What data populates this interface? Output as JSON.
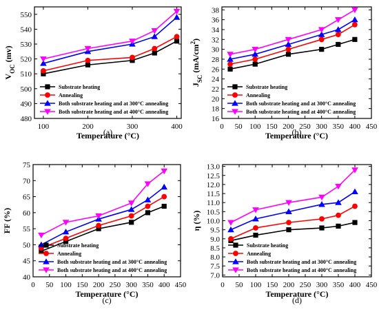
{
  "figure": {
    "captions": [
      "(a)",
      "(b)",
      "(c)",
      "(d)"
    ]
  },
  "legend": [
    {
      "label": "Substrate heating",
      "color": "#000000",
      "marker": "square"
    },
    {
      "label": "Annealing",
      "color": "#ff0000",
      "marker": "circle"
    },
    {
      "label": "Both substrate heating and at 300°C annealing",
      "color": "#0000ff",
      "marker": "triangle-up"
    },
    {
      "label": "Both substrate heating and at 400°C annealing",
      "color": "#ff00ff",
      "marker": "triangle-down"
    }
  ],
  "chart_data": [
    {
      "type": "line",
      "caption": "(a)",
      "xlabel": "Temperature (°C)",
      "ylabel": "Voc (mv)",
      "ylabel_main": "V",
      "ylabel_sub": "OC",
      "ylabel_unit": " (mv)",
      "xlim": [
        80,
        410
      ],
      "ylim": [
        480,
        555
      ],
      "xticks": [
        100,
        200,
        300,
        400
      ],
      "yticks": [
        480,
        490,
        500,
        510,
        520,
        530,
        540,
        550
      ],
      "legend_position": "bottom-right",
      "x": [
        100,
        200,
        300,
        350,
        400
      ],
      "series": [
        {
          "name": "Substrate heating",
          "values": [
            510,
            516,
            519,
            524,
            532
          ]
        },
        {
          "name": "Annealing",
          "values": [
            512,
            519,
            521,
            527,
            535
          ]
        },
        {
          "name": "Both substrate heating and at 300°C annealing",
          "values": [
            517,
            525,
            530,
            535,
            548
          ]
        },
        {
          "name": "Both substrate heating and at 400°C annealing",
          "values": [
            520,
            527,
            532,
            539,
            552
          ]
        }
      ]
    },
    {
      "type": "line",
      "caption": "(b)",
      "xlabel": "Temperature (°C)",
      "ylabel": "Jsc (mA/cm2)",
      "ylabel_main": "J",
      "ylabel_sub": "SC",
      "ylabel_unit": " (mA/cm",
      "ylabel_sup": "2",
      "ylabel_tail": ")",
      "xlim": [
        0,
        450
      ],
      "ylim": [
        16,
        38.6
      ],
      "xticks": [
        0,
        50,
        100,
        150,
        200,
        250,
        300,
        350,
        400,
        450
      ],
      "yticks": [
        16,
        18,
        20,
        22,
        24,
        26,
        28,
        30,
        32,
        34,
        36,
        38
      ],
      "legend_position": "bottom-right",
      "x": [
        25,
        100,
        200,
        300,
        350,
        400
      ],
      "series": [
        {
          "name": "Substrate heating",
          "values": [
            26,
            27,
            29,
            30,
            31,
            32
          ]
        },
        {
          "name": "Annealing",
          "values": [
            27,
            28,
            30,
            32,
            33,
            35
          ]
        },
        {
          "name": "Both substrate heating and at 300°C annealing",
          "values": [
            28,
            29,
            31,
            33,
            34,
            36
          ]
        },
        {
          "name": "Both substrate heating and at 400°C annealing",
          "values": [
            29,
            30,
            32,
            34,
            36,
            38
          ]
        }
      ]
    },
    {
      "type": "line",
      "caption": "(c)",
      "xlabel": "Temperature (°C)",
      "ylabel": "FF (%)",
      "ylabel_main": "FF (%)",
      "xlim": [
        0,
        450
      ],
      "ylim": [
        40,
        75
      ],
      "xticks": [
        0,
        50,
        100,
        150,
        200,
        250,
        300,
        350,
        400,
        450
      ],
      "yticks": [
        40,
        45,
        50,
        55,
        60,
        65,
        70,
        75
      ],
      "legend_position": "bottom-right",
      "x": [
        25,
        100,
        200,
        300,
        350,
        400
      ],
      "series": [
        {
          "name": "Substrate heating",
          "values": [
            48,
            51,
            55,
            57,
            60,
            62
          ]
        },
        {
          "name": "Annealing",
          "values": [
            49,
            52,
            56,
            59,
            62,
            65
          ]
        },
        {
          "name": "Both substrate heating and at 300°C annealing",
          "values": [
            50,
            54,
            58,
            61,
            64,
            68
          ]
        },
        {
          "name": "Both substrate heating and at 400°C annealing",
          "values": [
            53,
            57,
            59,
            63,
            69,
            73
          ]
        }
      ]
    },
    {
      "type": "line",
      "caption": "(d)",
      "xlabel": "Temperature (°C)",
      "ylabel": "η (%)",
      "ylabel_main": "η (%)",
      "xlim": [
        0,
        450
      ],
      "ylim": [
        6.9,
        13.1
      ],
      "xticks": [
        0,
        50,
        100,
        150,
        200,
        250,
        300,
        350,
        400,
        450
      ],
      "yticks": [
        7.0,
        7.5,
        8.0,
        8.5,
        9.0,
        9.5,
        10.0,
        10.5,
        11.0,
        11.5,
        12.0,
        12.5,
        13.0
      ],
      "ytick_format": "1dp",
      "legend_position": "bottom-right",
      "x": [
        25,
        100,
        200,
        300,
        350,
        400
      ],
      "series": [
        {
          "name": "Substrate heating",
          "values": [
            8.9,
            9.2,
            9.5,
            9.6,
            9.7,
            9.9
          ]
        },
        {
          "name": "Annealing",
          "values": [
            9.0,
            9.6,
            9.9,
            10.1,
            10.3,
            10.8
          ]
        },
        {
          "name": "Both substrate heating and at 300°C annealing",
          "values": [
            9.5,
            10.1,
            10.5,
            10.9,
            11.0,
            11.6
          ]
        },
        {
          "name": "Both substrate heating and at 400°C annealing",
          "values": [
            9.9,
            10.6,
            11.0,
            11.3,
            11.9,
            12.8
          ]
        }
      ]
    }
  ]
}
